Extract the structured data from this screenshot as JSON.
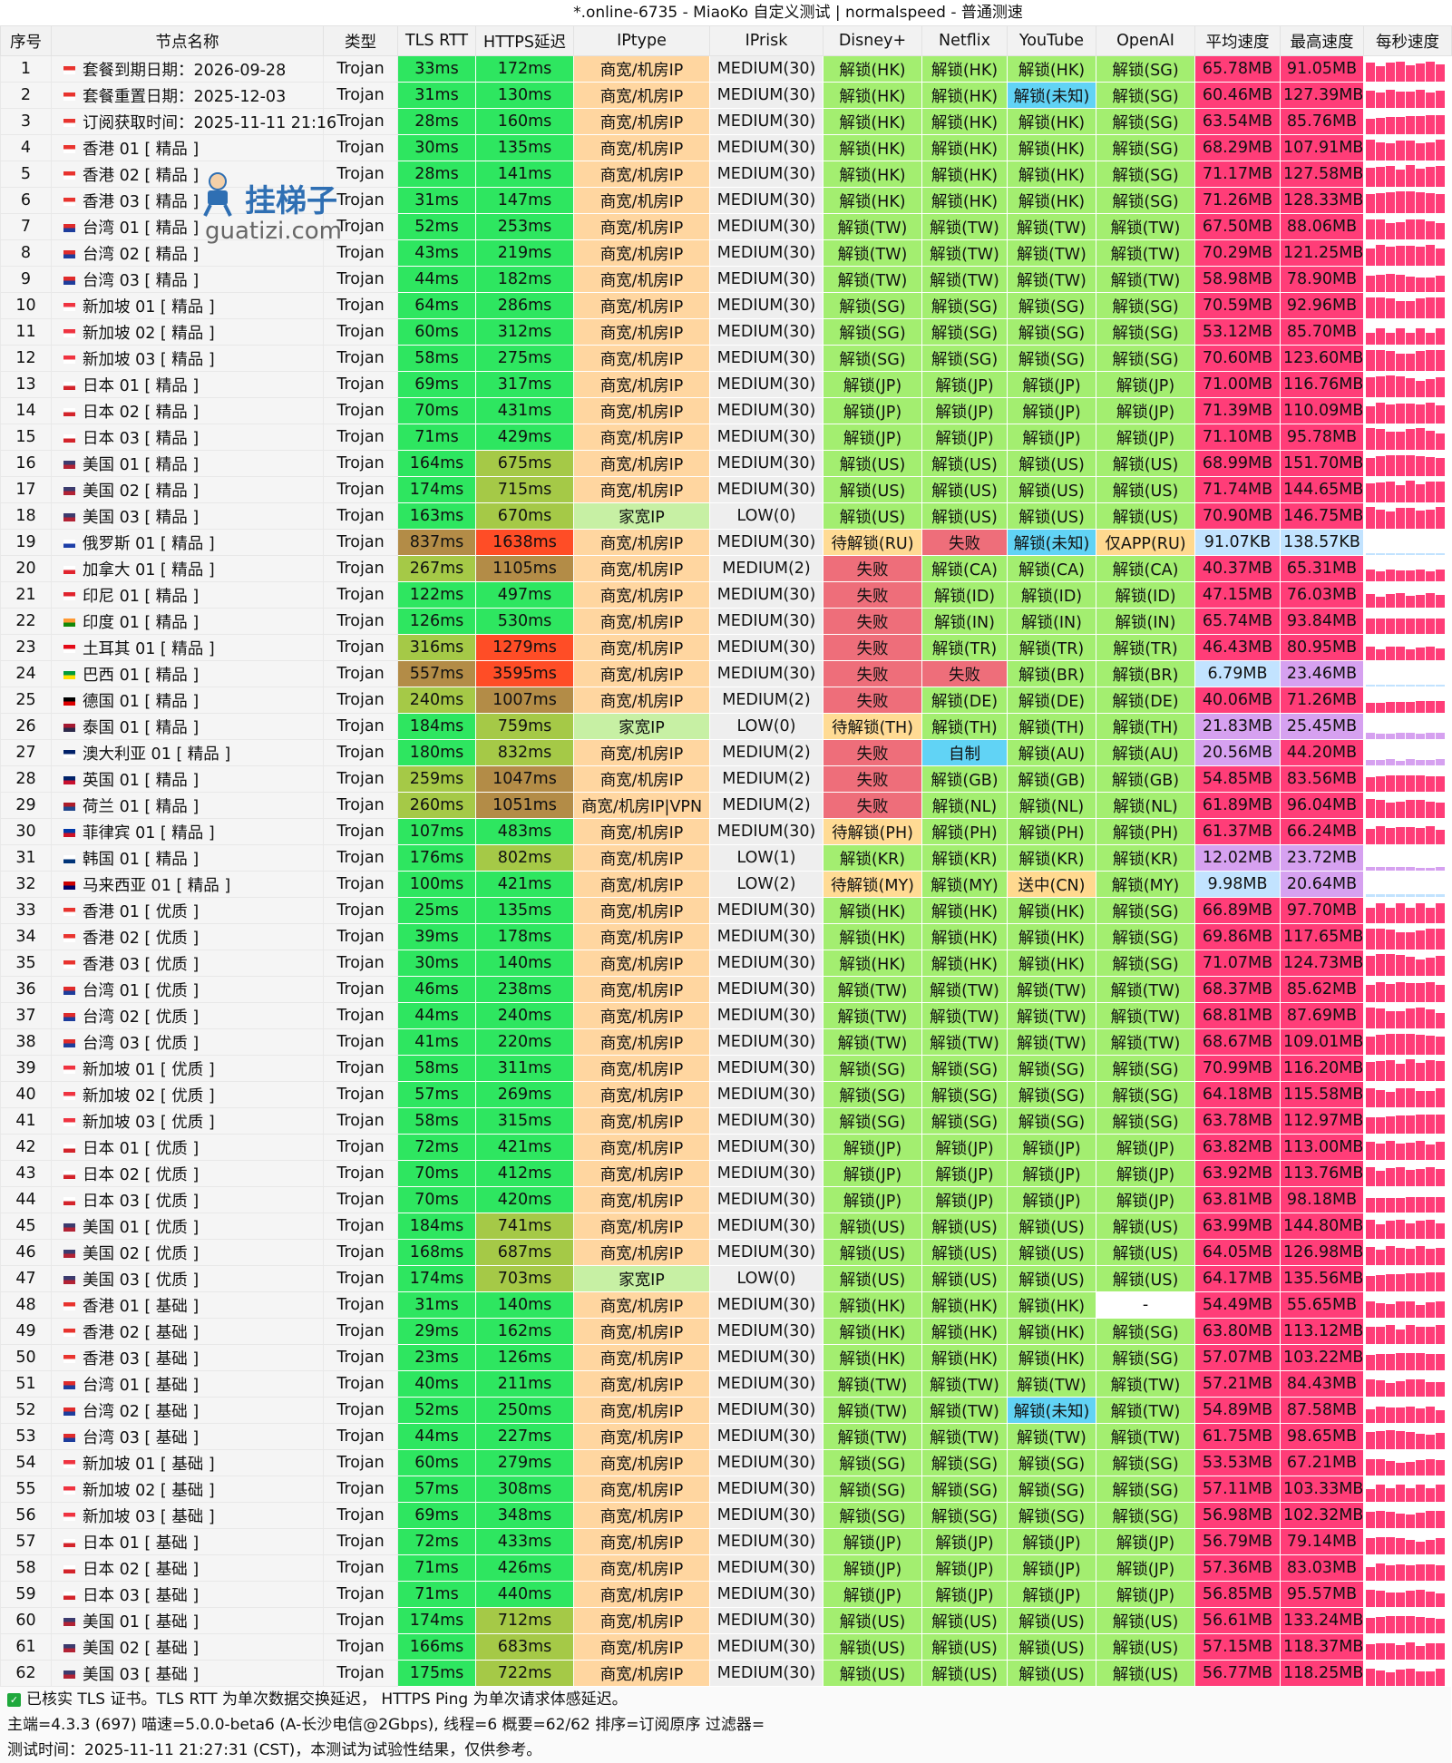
{
  "window_title": "*.online-6735 - MiaoKo 自定义测试 | normalspeed - 普通测速",
  "watermark": {
    "text": "挂梯子",
    "url": "guatizi.com"
  },
  "columns": [
    "序号",
    "节点名称",
    "类型",
    "TLS RTT",
    "HTTPS延迟",
    "IPtype",
    "IPrisk",
    "Disney+",
    "Netflix",
    "YouTube",
    "OpenAI",
    "平均速度",
    "最高速度",
    "每秒速度"
  ],
  "colors": {
    "green": "#2ee660",
    "olive": "#a5c947",
    "brown": "#b38c47",
    "red": "#ff4d26",
    "orange": "#ffd6a0",
    "lime": "#c7f0a4",
    "gray": "#eeeeee",
    "unlock": "#a3ee70",
    "fail": "#ee6e7a",
    "pending": "#ffdb94",
    "blue": "#61d3f5",
    "yellow": "#ffd98f",
    "pink": "#ff3d78",
    "purple": "#d6a1f0",
    "lightblue": "#c2e3ff",
    "white": "#ffffff"
  },
  "rows": [
    [
      "1",
      "hk",
      "套餐到期日期：2026-09-28",
      "Trojan",
      "33ms",
      "172ms",
      "商宽/机房IP",
      "MEDIUM(30)",
      "解锁(HK)",
      "解锁(HK)",
      "解锁(HK)",
      "解锁(SG)",
      "65.78MB",
      "91.05MB"
    ],
    [
      "2",
      "hk",
      "套餐重置日期：2025-12-03",
      "Trojan",
      "31ms",
      "130ms",
      "商宽/机房IP",
      "MEDIUM(30)",
      "解锁(HK)",
      "解锁(HK)",
      "解锁(未知)",
      "解锁(SG)",
      "60.46MB",
      "127.39MB"
    ],
    [
      "3",
      "hk",
      "订阅获取时间：2025-11-11 21:16",
      "Trojan",
      "28ms",
      "160ms",
      "商宽/机房IP",
      "MEDIUM(30)",
      "解锁(HK)",
      "解锁(HK)",
      "解锁(HK)",
      "解锁(SG)",
      "63.54MB",
      "85.76MB"
    ],
    [
      "4",
      "hk",
      "香港 01 [ 精品 ]",
      "Trojan",
      "30ms",
      "135ms",
      "商宽/机房IP",
      "MEDIUM(30)",
      "解锁(HK)",
      "解锁(HK)",
      "解锁(HK)",
      "解锁(SG)",
      "68.29MB",
      "107.91MB"
    ],
    [
      "5",
      "hk",
      "香港 02 [ 精品 ]",
      "Trojan",
      "28ms",
      "141ms",
      "商宽/机房IP",
      "MEDIUM(30)",
      "解锁(HK)",
      "解锁(HK)",
      "解锁(HK)",
      "解锁(SG)",
      "71.17MB",
      "127.58MB"
    ],
    [
      "6",
      "hk",
      "香港 03 [ 精品 ]",
      "Trojan",
      "31ms",
      "147ms",
      "商宽/机房IP",
      "MEDIUM(30)",
      "解锁(HK)",
      "解锁(HK)",
      "解锁(HK)",
      "解锁(SG)",
      "71.26MB",
      "128.33MB"
    ],
    [
      "7",
      "tw",
      "台湾 01 [ 精品 ]",
      "Trojan",
      "52ms",
      "253ms",
      "商宽/机房IP",
      "MEDIUM(30)",
      "解锁(TW)",
      "解锁(TW)",
      "解锁(TW)",
      "解锁(TW)",
      "67.50MB",
      "88.06MB"
    ],
    [
      "8",
      "tw",
      "台湾 02 [ 精品 ]",
      "Trojan",
      "43ms",
      "219ms",
      "商宽/机房IP",
      "MEDIUM(30)",
      "解锁(TW)",
      "解锁(TW)",
      "解锁(TW)",
      "解锁(TW)",
      "70.29MB",
      "121.25MB"
    ],
    [
      "9",
      "tw",
      "台湾 03 [ 精品 ]",
      "Trojan",
      "44ms",
      "182ms",
      "商宽/机房IP",
      "MEDIUM(30)",
      "解锁(TW)",
      "解锁(TW)",
      "解锁(TW)",
      "解锁(TW)",
      "58.98MB",
      "78.90MB"
    ],
    [
      "10",
      "sg",
      "新加坡 01 [ 精品 ]",
      "Trojan",
      "64ms",
      "286ms",
      "商宽/机房IP",
      "MEDIUM(30)",
      "解锁(SG)",
      "解锁(SG)",
      "解锁(SG)",
      "解锁(SG)",
      "70.59MB",
      "92.96MB"
    ],
    [
      "11",
      "sg",
      "新加坡 02 [ 精品 ]",
      "Trojan",
      "60ms",
      "312ms",
      "商宽/机房IP",
      "MEDIUM(30)",
      "解锁(SG)",
      "解锁(SG)",
      "解锁(SG)",
      "解锁(SG)",
      "53.12MB",
      "85.70MB"
    ],
    [
      "12",
      "sg",
      "新加坡 03 [ 精品 ]",
      "Trojan",
      "58ms",
      "275ms",
      "商宽/机房IP",
      "MEDIUM(30)",
      "解锁(SG)",
      "解锁(SG)",
      "解锁(SG)",
      "解锁(SG)",
      "70.60MB",
      "123.60MB"
    ],
    [
      "13",
      "jp",
      "日本 01 [ 精品 ]",
      "Trojan",
      "69ms",
      "317ms",
      "商宽/机房IP",
      "MEDIUM(30)",
      "解锁(JP)",
      "解锁(JP)",
      "解锁(JP)",
      "解锁(JP)",
      "71.00MB",
      "116.76MB"
    ],
    [
      "14",
      "jp",
      "日本 02 [ 精品 ]",
      "Trojan",
      "70ms",
      "431ms",
      "商宽/机房IP",
      "MEDIUM(30)",
      "解锁(JP)",
      "解锁(JP)",
      "解锁(JP)",
      "解锁(JP)",
      "71.39MB",
      "110.09MB"
    ],
    [
      "15",
      "jp",
      "日本 03 [ 精品 ]",
      "Trojan",
      "71ms",
      "429ms",
      "商宽/机房IP",
      "MEDIUM(30)",
      "解锁(JP)",
      "解锁(JP)",
      "解锁(JP)",
      "解锁(JP)",
      "71.10MB",
      "95.78MB"
    ],
    [
      "16",
      "us",
      "美国 01 [ 精品 ]",
      "Trojan",
      "164ms",
      "675ms",
      "商宽/机房IP",
      "MEDIUM(30)",
      "解锁(US)",
      "解锁(US)",
      "解锁(US)",
      "解锁(US)",
      "68.99MB",
      "151.70MB"
    ],
    [
      "17",
      "us",
      "美国 02 [ 精品 ]",
      "Trojan",
      "174ms",
      "715ms",
      "商宽/机房IP",
      "MEDIUM(30)",
      "解锁(US)",
      "解锁(US)",
      "解锁(US)",
      "解锁(US)",
      "71.74MB",
      "144.65MB"
    ],
    [
      "18",
      "us",
      "美国 03 [ 精品 ]",
      "Trojan",
      "163ms",
      "670ms",
      "家宽IP",
      "LOW(0)",
      "解锁(US)",
      "解锁(US)",
      "解锁(US)",
      "解锁(US)",
      "70.90MB",
      "146.75MB"
    ],
    [
      "19",
      "ru",
      "俄罗斯 01 [ 精品 ]",
      "Trojan",
      "837ms",
      "1638ms",
      "商宽/机房IP",
      "MEDIUM(30)",
      "待解锁(RU)",
      "失败",
      "解锁(未知)",
      "仅APP(RU)",
      "91.07KB",
      "138.57KB"
    ],
    [
      "20",
      "ca",
      "加拿大 01 [ 精品 ]",
      "Trojan",
      "267ms",
      "1105ms",
      "商宽/机房IP",
      "MEDIUM(2)",
      "失败",
      "解锁(CA)",
      "解锁(CA)",
      "解锁(CA)",
      "40.37MB",
      "65.31MB"
    ],
    [
      "21",
      "id",
      "印尼 01 [ 精品 ]",
      "Trojan",
      "122ms",
      "497ms",
      "商宽/机房IP",
      "MEDIUM(30)",
      "失败",
      "解锁(ID)",
      "解锁(ID)",
      "解锁(ID)",
      "47.15MB",
      "76.03MB"
    ],
    [
      "22",
      "in",
      "印度 01 [ 精品 ]",
      "Trojan",
      "126ms",
      "530ms",
      "商宽/机房IP",
      "MEDIUM(30)",
      "失败",
      "解锁(IN)",
      "解锁(IN)",
      "解锁(IN)",
      "65.74MB",
      "93.84MB"
    ],
    [
      "23",
      "tr",
      "土耳其 01 [ 精品 ]",
      "Trojan",
      "316ms",
      "1279ms",
      "商宽/机房IP",
      "MEDIUM(30)",
      "失败",
      "解锁(TR)",
      "解锁(TR)",
      "解锁(TR)",
      "46.43MB",
      "80.95MB"
    ],
    [
      "24",
      "br",
      "巴西 01 [ 精品 ]",
      "Trojan",
      "557ms",
      "3595ms",
      "商宽/机房IP",
      "MEDIUM(30)",
      "失败",
      "失败",
      "解锁(BR)",
      "解锁(BR)",
      "6.79MB",
      "23.46MB"
    ],
    [
      "25",
      "de",
      "德国 01 [ 精品 ]",
      "Trojan",
      "240ms",
      "1007ms",
      "商宽/机房IP",
      "MEDIUM(2)",
      "失败",
      "解锁(DE)",
      "解锁(DE)",
      "解锁(DE)",
      "40.06MB",
      "71.26MB"
    ],
    [
      "26",
      "th",
      "泰国 01 [ 精品 ]",
      "Trojan",
      "184ms",
      "759ms",
      "家宽IP",
      "LOW(0)",
      "待解锁(TH)",
      "解锁(TH)",
      "解锁(TH)",
      "解锁(TH)",
      "21.83MB",
      "25.45MB"
    ],
    [
      "27",
      "au",
      "澳大利亚 01 [ 精品 ]",
      "Trojan",
      "180ms",
      "832ms",
      "商宽/机房IP",
      "MEDIUM(2)",
      "失败",
      "自制",
      "解锁(AU)",
      "解锁(AU)",
      "20.56MB",
      "44.20MB"
    ],
    [
      "28",
      "gb",
      "英国 01 [ 精品 ]",
      "Trojan",
      "259ms",
      "1047ms",
      "商宽/机房IP",
      "MEDIUM(2)",
      "失败",
      "解锁(GB)",
      "解锁(GB)",
      "解锁(GB)",
      "54.85MB",
      "83.56MB"
    ],
    [
      "29",
      "nl",
      "荷兰 01 [ 精品 ]",
      "Trojan",
      "260ms",
      "1051ms",
      "商宽/机房IP|VPN",
      "MEDIUM(2)",
      "失败",
      "解锁(NL)",
      "解锁(NL)",
      "解锁(NL)",
      "61.89MB",
      "96.04MB"
    ],
    [
      "30",
      "ph",
      "菲律宾 01 [ 精品 ]",
      "Trojan",
      "107ms",
      "483ms",
      "商宽/机房IP",
      "MEDIUM(30)",
      "待解锁(PH)",
      "解锁(PH)",
      "解锁(PH)",
      "解锁(PH)",
      "61.37MB",
      "66.24MB"
    ],
    [
      "31",
      "kr",
      "韩国 01 [ 精品 ]",
      "Trojan",
      "176ms",
      "802ms",
      "商宽/机房IP",
      "LOW(1)",
      "解锁(KR)",
      "解锁(KR)",
      "解锁(KR)",
      "解锁(KR)",
      "12.02MB",
      "23.72MB"
    ],
    [
      "32",
      "my",
      "马来西亚 01 [ 精品 ]",
      "Trojan",
      "100ms",
      "421ms",
      "商宽/机房IP",
      "LOW(2)",
      "待解锁(MY)",
      "解锁(MY)",
      "送中(CN)",
      "解锁(MY)",
      "9.98MB",
      "20.64MB"
    ],
    [
      "33",
      "hk",
      "香港 01 [ 优质 ]",
      "Trojan",
      "25ms",
      "135ms",
      "商宽/机房IP",
      "MEDIUM(30)",
      "解锁(HK)",
      "解锁(HK)",
      "解锁(HK)",
      "解锁(SG)",
      "66.89MB",
      "97.70MB"
    ],
    [
      "34",
      "hk",
      "香港 02 [ 优质 ]",
      "Trojan",
      "39ms",
      "178ms",
      "商宽/机房IP",
      "MEDIUM(30)",
      "解锁(HK)",
      "解锁(HK)",
      "解锁(HK)",
      "解锁(SG)",
      "69.86MB",
      "117.65MB"
    ],
    [
      "35",
      "hk",
      "香港 03 [ 优质 ]",
      "Trojan",
      "30ms",
      "140ms",
      "商宽/机房IP",
      "MEDIUM(30)",
      "解锁(HK)",
      "解锁(HK)",
      "解锁(HK)",
      "解锁(SG)",
      "71.07MB",
      "124.73MB"
    ],
    [
      "36",
      "tw",
      "台湾 01 [ 优质 ]",
      "Trojan",
      "46ms",
      "238ms",
      "商宽/机房IP",
      "MEDIUM(30)",
      "解锁(TW)",
      "解锁(TW)",
      "解锁(TW)",
      "解锁(TW)",
      "68.37MB",
      "85.62MB"
    ],
    [
      "37",
      "tw",
      "台湾 02 [ 优质 ]",
      "Trojan",
      "44ms",
      "240ms",
      "商宽/机房IP",
      "MEDIUM(30)",
      "解锁(TW)",
      "解锁(TW)",
      "解锁(TW)",
      "解锁(TW)",
      "68.81MB",
      "87.69MB"
    ],
    [
      "38",
      "tw",
      "台湾 03 [ 优质 ]",
      "Trojan",
      "41ms",
      "220ms",
      "商宽/机房IP",
      "MEDIUM(30)",
      "解锁(TW)",
      "解锁(TW)",
      "解锁(TW)",
      "解锁(TW)",
      "68.67MB",
      "109.01MB"
    ],
    [
      "39",
      "sg",
      "新加坡 01 [ 优质 ]",
      "Trojan",
      "58ms",
      "311ms",
      "商宽/机房IP",
      "MEDIUM(30)",
      "解锁(SG)",
      "解锁(SG)",
      "解锁(SG)",
      "解锁(SG)",
      "70.99MB",
      "116.20MB"
    ],
    [
      "40",
      "sg",
      "新加坡 02 [ 优质 ]",
      "Trojan",
      "57ms",
      "269ms",
      "商宽/机房IP",
      "MEDIUM(30)",
      "解锁(SG)",
      "解锁(SG)",
      "解锁(SG)",
      "解锁(SG)",
      "64.18MB",
      "115.58MB"
    ],
    [
      "41",
      "sg",
      "新加坡 03 [ 优质 ]",
      "Trojan",
      "58ms",
      "315ms",
      "商宽/机房IP",
      "MEDIUM(30)",
      "解锁(SG)",
      "解锁(SG)",
      "解锁(SG)",
      "解锁(SG)",
      "63.78MB",
      "112.97MB"
    ],
    [
      "42",
      "jp",
      "日本 01 [ 优质 ]",
      "Trojan",
      "72ms",
      "421ms",
      "商宽/机房IP",
      "MEDIUM(30)",
      "解锁(JP)",
      "解锁(JP)",
      "解锁(JP)",
      "解锁(JP)",
      "63.82MB",
      "113.00MB"
    ],
    [
      "43",
      "jp",
      "日本 02 [ 优质 ]",
      "Trojan",
      "70ms",
      "412ms",
      "商宽/机房IP",
      "MEDIUM(30)",
      "解锁(JP)",
      "解锁(JP)",
      "解锁(JP)",
      "解锁(JP)",
      "63.92MB",
      "113.76MB"
    ],
    [
      "44",
      "jp",
      "日本 03 [ 优质 ]",
      "Trojan",
      "70ms",
      "420ms",
      "商宽/机房IP",
      "MEDIUM(30)",
      "解锁(JP)",
      "解锁(JP)",
      "解锁(JP)",
      "解锁(JP)",
      "63.81MB",
      "98.18MB"
    ],
    [
      "45",
      "us",
      "美国 01 [ 优质 ]",
      "Trojan",
      "184ms",
      "741ms",
      "商宽/机房IP",
      "MEDIUM(30)",
      "解锁(US)",
      "解锁(US)",
      "解锁(US)",
      "解锁(US)",
      "63.99MB",
      "144.80MB"
    ],
    [
      "46",
      "us",
      "美国 02 [ 优质 ]",
      "Trojan",
      "168ms",
      "687ms",
      "商宽/机房IP",
      "MEDIUM(30)",
      "解锁(US)",
      "解锁(US)",
      "解锁(US)",
      "解锁(US)",
      "64.05MB",
      "126.98MB"
    ],
    [
      "47",
      "us",
      "美国 03 [ 优质 ]",
      "Trojan",
      "174ms",
      "703ms",
      "家宽IP",
      "LOW(0)",
      "解锁(US)",
      "解锁(US)",
      "解锁(US)",
      "解锁(US)",
      "64.17MB",
      "135.56MB"
    ],
    [
      "48",
      "hk",
      "香港 01 [ 基础 ]",
      "Trojan",
      "31ms",
      "140ms",
      "商宽/机房IP",
      "MEDIUM(30)",
      "解锁(HK)",
      "解锁(HK)",
      "解锁(HK)",
      "-",
      "54.49MB",
      "55.65MB"
    ],
    [
      "49",
      "hk",
      "香港 02 [ 基础 ]",
      "Trojan",
      "29ms",
      "162ms",
      "商宽/机房IP",
      "MEDIUM(30)",
      "解锁(HK)",
      "解锁(HK)",
      "解锁(HK)",
      "解锁(SG)",
      "63.80MB",
      "113.12MB"
    ],
    [
      "50",
      "hk",
      "香港 03 [ 基础 ]",
      "Trojan",
      "23ms",
      "126ms",
      "商宽/机房IP",
      "MEDIUM(30)",
      "解锁(HK)",
      "解锁(HK)",
      "解锁(HK)",
      "解锁(SG)",
      "57.07MB",
      "103.22MB"
    ],
    [
      "51",
      "tw",
      "台湾 01 [ 基础 ]",
      "Trojan",
      "40ms",
      "211ms",
      "商宽/机房IP",
      "MEDIUM(30)",
      "解锁(TW)",
      "解锁(TW)",
      "解锁(TW)",
      "解锁(TW)",
      "57.21MB",
      "84.43MB"
    ],
    [
      "52",
      "tw",
      "台湾 02 [ 基础 ]",
      "Trojan",
      "52ms",
      "250ms",
      "商宽/机房IP",
      "MEDIUM(30)",
      "解锁(TW)",
      "解锁(TW)",
      "解锁(未知)",
      "解锁(TW)",
      "54.89MB",
      "87.58MB"
    ],
    [
      "53",
      "tw",
      "台湾 03 [ 基础 ]",
      "Trojan",
      "44ms",
      "227ms",
      "商宽/机房IP",
      "MEDIUM(30)",
      "解锁(TW)",
      "解锁(TW)",
      "解锁(TW)",
      "解锁(TW)",
      "61.75MB",
      "98.65MB"
    ],
    [
      "54",
      "sg",
      "新加坡 01 [ 基础 ]",
      "Trojan",
      "60ms",
      "279ms",
      "商宽/机房IP",
      "MEDIUM(30)",
      "解锁(SG)",
      "解锁(SG)",
      "解锁(SG)",
      "解锁(SG)",
      "53.53MB",
      "67.21MB"
    ],
    [
      "55",
      "sg",
      "新加坡 02 [ 基础 ]",
      "Trojan",
      "57ms",
      "308ms",
      "商宽/机房IP",
      "MEDIUM(30)",
      "解锁(SG)",
      "解锁(SG)",
      "解锁(SG)",
      "解锁(SG)",
      "57.11MB",
      "103.33MB"
    ],
    [
      "56",
      "sg",
      "新加坡 03 [ 基础 ]",
      "Trojan",
      "69ms",
      "348ms",
      "商宽/机房IP",
      "MEDIUM(30)",
      "解锁(SG)",
      "解锁(SG)",
      "解锁(SG)",
      "解锁(SG)",
      "56.98MB",
      "102.32MB"
    ],
    [
      "57",
      "jp",
      "日本 01 [ 基础 ]",
      "Trojan",
      "72ms",
      "433ms",
      "商宽/机房IP",
      "MEDIUM(30)",
      "解锁(JP)",
      "解锁(JP)",
      "解锁(JP)",
      "解锁(JP)",
      "56.79MB",
      "79.14MB"
    ],
    [
      "58",
      "jp",
      "日本 02 [ 基础 ]",
      "Trojan",
      "71ms",
      "426ms",
      "商宽/机房IP",
      "MEDIUM(30)",
      "解锁(JP)",
      "解锁(JP)",
      "解锁(JP)",
      "解锁(JP)",
      "57.36MB",
      "83.03MB"
    ],
    [
      "59",
      "jp",
      "日本 03 [ 基础 ]",
      "Trojan",
      "71ms",
      "440ms",
      "商宽/机房IP",
      "MEDIUM(30)",
      "解锁(JP)",
      "解锁(JP)",
      "解锁(JP)",
      "解锁(JP)",
      "56.85MB",
      "95.57MB"
    ],
    [
      "60",
      "us",
      "美国 01 [ 基础 ]",
      "Trojan",
      "174ms",
      "712ms",
      "商宽/机房IP",
      "MEDIUM(30)",
      "解锁(US)",
      "解锁(US)",
      "解锁(US)",
      "解锁(US)",
      "56.61MB",
      "133.24MB"
    ],
    [
      "61",
      "us",
      "美国 02 [ 基础 ]",
      "Trojan",
      "166ms",
      "683ms",
      "商宽/机房IP",
      "MEDIUM(30)",
      "解锁(US)",
      "解锁(US)",
      "解锁(US)",
      "解锁(US)",
      "57.15MB",
      "118.37MB"
    ],
    [
      "62",
      "us",
      "美国 03 [ 基础 ]",
      "Trojan",
      "175ms",
      "722ms",
      "商宽/机房IP",
      "MEDIUM(30)",
      "解锁(US)",
      "解锁(US)",
      "解锁(US)",
      "解锁(US)",
      "56.77MB",
      "118.25MB"
    ]
  ],
  "flag_colors": {
    "hk": [
      "#e8332e",
      "#ffffff"
    ],
    "tw": [
      "#e02b2b",
      "#1d3d9c"
    ],
    "sg": [
      "#ef3340",
      "#ffffff"
    ],
    "jp": [
      "#ffffff",
      "#d3232a"
    ],
    "us": [
      "#3c3b6e",
      "#b22234"
    ],
    "ru": [
      "#ffffff",
      "#1d3fa8"
    ],
    "ca": [
      "#ffffff",
      "#e0232d"
    ],
    "id": [
      "#e0232d",
      "#ffffff"
    ],
    "in": [
      "#ff9933",
      "#138808"
    ],
    "tr": [
      "#e30a17",
      "#ffffff"
    ],
    "br": [
      "#009b3a",
      "#fedf00"
    ],
    "de": [
      "#000000",
      "#dd0000"
    ],
    "th": [
      "#a51931",
      "#2d2a4a"
    ],
    "au": [
      "#012169",
      "#ffffff"
    ],
    "gb": [
      "#012169",
      "#c8102e"
    ],
    "nl": [
      "#ae1c28",
      "#21468b"
    ],
    "ph": [
      "#0038a8",
      "#ce1126"
    ],
    "kr": [
      "#ffffff",
      "#003478"
    ],
    "my": [
      "#cc0001",
      "#010066"
    ]
  },
  "footer": {
    "line1": "已核实 TLS 证书。TLS RTT 为单次数据交换延迟， HTTPS Ping 为单次请求体感延迟。",
    "line2": "主端=4.3.3 (697) 喵速=5.0.0-beta6 (A-长沙电信@2Gbps), 线程=6 概要=62/62 排序=订阅原序 过滤器=",
    "line3": "测试时间：2025-11-11 21:27:31 (CST)，本测试为试验性结果，仅供参考。"
  }
}
